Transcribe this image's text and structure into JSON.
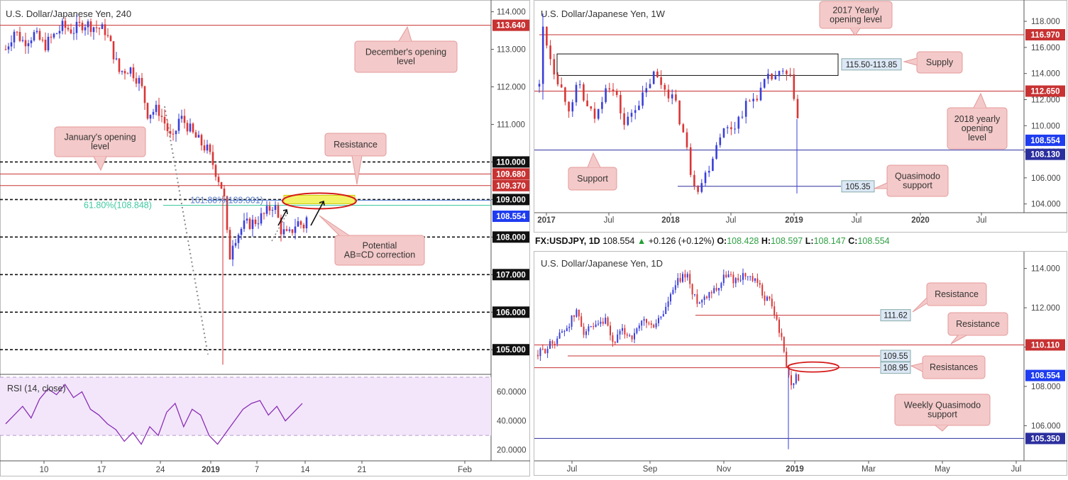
{
  "colors": {
    "bull": "#3a3fd8",
    "bear": "#d93636",
    "red_level": "#c83232",
    "blue_level": "#2b2f9e",
    "fib": "#3ec9a0",
    "rsi": "#8a2fb5",
    "callout_fill": "#f4c9c9",
    "callout_stroke": "#e49a9a",
    "price_blue": "#1e3cf0",
    "label_dark": "#1e2a5a",
    "zone_fill": "#f3f36a"
  },
  "panels": {
    "h4": {
      "title": "U.S. Dollar/Japanese Yen, 240",
      "y_ticks": [
        "114.000",
        "113.000",
        "112.000",
        "111.000",
        "110.000",
        "109.000",
        "108.000",
        "107.000",
        "106.000",
        "105.000"
      ],
      "x_ticks": [
        "10",
        "17",
        "24",
        "2019",
        "7",
        "14",
        "21",
        "Feb"
      ],
      "price_labels": [
        {
          "text": "113.640",
          "value": 113.64,
          "kind": "red"
        },
        {
          "text": "110.000",
          "value": 110.0,
          "kind": "dark"
        },
        {
          "text": "109.680",
          "value": 109.68,
          "kind": "red"
        },
        {
          "text": "109.370",
          "value": 109.37,
          "kind": "red"
        },
        {
          "text": "109.000",
          "value": 109.0,
          "kind": "dark"
        },
        {
          "text": "108.554",
          "value": 108.554,
          "kind": "blue"
        },
        {
          "text": "108.000",
          "value": 108.0,
          "kind": "dark"
        },
        {
          "text": "107.000",
          "value": 107.0,
          "kind": "dark"
        },
        {
          "text": "106.000",
          "value": 106.0,
          "kind": "dark"
        },
        {
          "text": "105.000",
          "value": 105.0,
          "kind": "dark"
        }
      ],
      "fib_labels": {
        "retracement": "61.80%(108.848)",
        "extension": "161.80%(109.001)"
      },
      "callouts": {
        "december": "December's opening level",
        "january": "January's opening level",
        "resistance": "Resistance",
        "abcd": "Potential AB=CD correction"
      },
      "rsi": {
        "title": "RSI (14, close)",
        "ticks": [
          "60.0000",
          "40.0000",
          "20.0000"
        ]
      }
    },
    "weekly": {
      "title": "U.S. Dollar/Japanese Yen, 1W",
      "y_ticks": [
        "118.000",
        "116.000",
        "114.000",
        "112.000",
        "110.000",
        "108.000",
        "106.000",
        "104.000"
      ],
      "x_ticks": [
        "2017",
        "Jul",
        "2018",
        "Jul",
        "2019",
        "Jul",
        "2020",
        "Jul"
      ],
      "price_labels": [
        {
          "text": "116.970",
          "value": 116.97,
          "kind": "red"
        },
        {
          "text": "112.650",
          "value": 112.65,
          "kind": "red"
        },
        {
          "text": "108.554",
          "value": 108.554,
          "kind": "blue"
        },
        {
          "text": "108.130",
          "value": 108.13,
          "kind": "navy"
        }
      ],
      "box_labels": {
        "supply_zone": "115.50-113.85",
        "qm": "105.35"
      },
      "callouts": {
        "yearly2017": "2017 Yearly opening level",
        "supply": "Supply",
        "yearly2018": "2018 yearly opening level",
        "support": "Support",
        "qm": "Quasimodo support"
      }
    },
    "daily": {
      "info": {
        "symbol": "FX:USDJPY, 1D",
        "last": "108.554",
        "change": "+0.126 (+0.12%)",
        "o_label": "O:",
        "o": "108.428",
        "h_label": "H:",
        "h": "108.597",
        "l_label": "L:",
        "l": "108.147",
        "c_label": "C:",
        "c": "108.554"
      },
      "title": "U.S. Dollar/Japanese Yen, 1D",
      "y_ticks": [
        "114.000",
        "112.000",
        "110.000",
        "108.000",
        "106.000"
      ],
      "x_ticks": [
        "Jul",
        "Sep",
        "Nov",
        "2019",
        "Mar",
        "May",
        "Jul"
      ],
      "price_labels": [
        {
          "text": "110.110",
          "value": 110.11,
          "kind": "red"
        },
        {
          "text": "108.554",
          "value": 108.554,
          "kind": "blue"
        },
        {
          "text": "105.350",
          "value": 105.35,
          "kind": "navy"
        }
      ],
      "box_labels": {
        "r1": "111.62",
        "r2": "109.55",
        "r3": "108.95"
      },
      "callouts": {
        "resistance1": "Resistance",
        "resistance2": "Resistance",
        "resistances": "Resistances",
        "wqm": "Weekly Quasimodo support"
      }
    }
  },
  "chart_data": [
    {
      "type": "candlestick",
      "title": "U.S. Dollar/Japanese Yen, 240",
      "ylim": [
        104.4,
        114.2
      ],
      "x_ticks": [
        "10",
        "17",
        "24",
        "2019",
        "7",
        "14",
        "21",
        "Feb"
      ],
      "path": [
        [
          0,
          113.0
        ],
        [
          12,
          113.5
        ],
        [
          25,
          113.2
        ],
        [
          40,
          113.4
        ],
        [
          55,
          113.1
        ],
        [
          65,
          113.3
        ],
        [
          80,
          113.6
        ],
        [
          95,
          113.5
        ],
        [
          110,
          113.7
        ],
        [
          125,
          113.6
        ],
        [
          140,
          113.5
        ],
        [
          150,
          113.0
        ],
        [
          160,
          112.4
        ],
        [
          175,
          112.5
        ],
        [
          190,
          112.1
        ],
        [
          200,
          111.3
        ],
        [
          215,
          111.4
        ],
        [
          225,
          111.0
        ],
        [
          235,
          110.5
        ],
        [
          245,
          111.2
        ],
        [
          255,
          111.0
        ],
        [
          265,
          110.7
        ],
        [
          275,
          110.5
        ],
        [
          285,
          110.3
        ],
        [
          295,
          109.8
        ],
        [
          305,
          109.3
        ],
        [
          310,
          108.8
        ],
        [
          314,
          107.3
        ],
        [
          320,
          107.9
        ],
        [
          335,
          108.3
        ],
        [
          350,
          108.4
        ],
        [
          365,
          108.6
        ],
        [
          378,
          108.9
        ],
        [
          388,
          108.2
        ],
        [
          398,
          108.0
        ],
        [
          410,
          108.4
        ],
        [
          420,
          108.3
        ],
        [
          425,
          108.55
        ]
      ],
      "levels": [
        113.64,
        110.0,
        109.68,
        109.37,
        109.0,
        108.848,
        108.0,
        107.0,
        106.0,
        105.0
      ],
      "last": 108.554,
      "rsi": {
        "ylim": [
          15,
          70
        ],
        "values": [
          38,
          44,
          50,
          42,
          55,
          62,
          58,
          65,
          56,
          60,
          48,
          44,
          38,
          34,
          26,
          32,
          24,
          36,
          30,
          46,
          52,
          36,
          48,
          44,
          30,
          24,
          32,
          40,
          48,
          52,
          54,
          44,
          50,
          40,
          46,
          52
        ]
      }
    },
    {
      "type": "candlestick",
      "title": "U.S. Dollar/Japanese Yen, 1W",
      "ylim": [
        103.6,
        119.2
      ],
      "x_ticks": [
        "2017",
        "Jul",
        "2018",
        "Jul",
        "2019",
        "Jul",
        "2020",
        "Jul"
      ],
      "path": [
        [
          0,
          113
        ],
        [
          5,
          117.6
        ],
        [
          12,
          116
        ],
        [
          20,
          114.4
        ],
        [
          30,
          113
        ],
        [
          45,
          111
        ],
        [
          55,
          113.5
        ],
        [
          65,
          111.5
        ],
        [
          80,
          110.5
        ],
        [
          95,
          113.5
        ],
        [
          110,
          112
        ],
        [
          120,
          110
        ],
        [
          135,
          111.5
        ],
        [
          150,
          112.5
        ],
        [
          160,
          114
        ],
        [
          175,
          113
        ],
        [
          190,
          112
        ],
        [
          205,
          109
        ],
        [
          215,
          106
        ],
        [
          225,
          105.2
        ],
        [
          240,
          107
        ],
        [
          255,
          109.5
        ],
        [
          275,
          110
        ],
        [
          290,
          111.5
        ],
        [
          310,
          112.5
        ],
        [
          320,
          113.5
        ],
        [
          335,
          113.8
        ],
        [
          345,
          114
        ],
        [
          355,
          113.4
        ],
        [
          362,
          111.5
        ],
        [
          368,
          108.6
        ]
      ],
      "levels": [
        116.97,
        112.65,
        108.13,
        105.35
      ],
      "zones": [
        {
          "label": "115.50-113.85",
          "from": 113.85,
          "to": 115.5
        }
      ],
      "last": 108.554
    },
    {
      "type": "candlestick",
      "title": "U.S. Dollar/Japanese Yen, 1D",
      "ylim": [
        104.5,
        114.6
      ],
      "x_ticks": [
        "Jul",
        "Sep",
        "Nov",
        "2019",
        "Mar",
        "May",
        "Jul"
      ],
      "path": [
        [
          0,
          109.6
        ],
        [
          20,
          110.2
        ],
        [
          40,
          111.0
        ],
        [
          55,
          111.8
        ],
        [
          65,
          110.8
        ],
        [
          80,
          110.9
        ],
        [
          95,
          111.3
        ],
        [
          105,
          110.2
        ],
        [
          120,
          110.8
        ],
        [
          135,
          110.5
        ],
        [
          150,
          111.4
        ],
        [
          160,
          111.0
        ],
        [
          175,
          111.6
        ],
        [
          185,
          112.4
        ],
        [
          195,
          113.2
        ],
        [
          210,
          113.8
        ],
        [
          218,
          112.6
        ],
        [
          228,
          112.3
        ],
        [
          240,
          112.8
        ],
        [
          255,
          113.1
        ],
        [
          265,
          113.7
        ],
        [
          278,
          113.4
        ],
        [
          290,
          113.7
        ],
        [
          300,
          113.4
        ],
        [
          310,
          113.2
        ],
        [
          318,
          112.6
        ],
        [
          328,
          112.3
        ],
        [
          340,
          110.9
        ],
        [
          348,
          109.6
        ],
        [
          352,
          108.7
        ],
        [
          356,
          108.2
        ],
        [
          362,
          108.4
        ],
        [
          370,
          108.55
        ]
      ],
      "levels": [
        111.62,
        110.11,
        109.55,
        108.95,
        105.35
      ],
      "last": 108.554
    }
  ]
}
